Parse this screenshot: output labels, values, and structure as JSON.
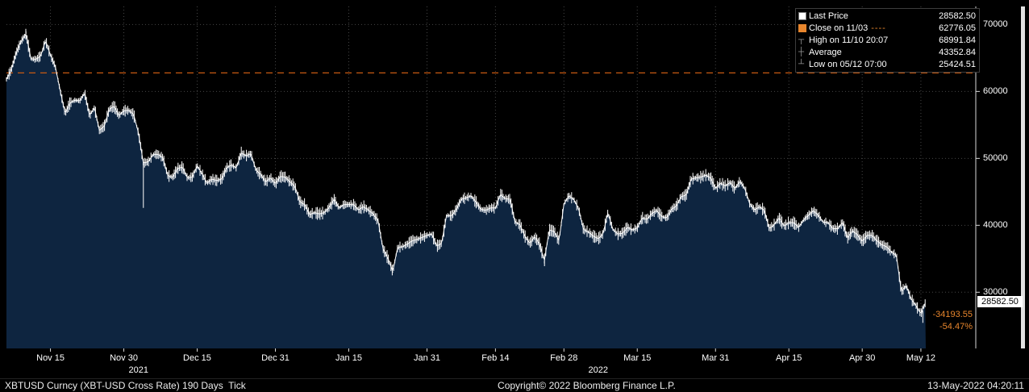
{
  "colors": {
    "background": "#000000",
    "area_fill": "#0e2540",
    "price_line": "#ffffff",
    "close_line": "#c85a12",
    "amber": "#e8862d",
    "grid": "#464646"
  },
  "legend": {
    "rows": [
      {
        "icon": "white-square",
        "label": "Last Price",
        "value": "28582.50"
      },
      {
        "icon": "orange-square",
        "label": "Close on 11/03",
        "dash": "----",
        "value": "62776.05"
      },
      {
        "icon": "high-marker",
        "label": "High on 11/10 20:07",
        "value": "68991.84"
      },
      {
        "icon": "average-marker",
        "label": "Average",
        "value": "43352.84"
      },
      {
        "icon": "low-marker",
        "label": "Low on 05/12 07:00",
        "value": "25424.51"
      }
    ]
  },
  "price_label": {
    "value": "28582.50"
  },
  "change_labels": {
    "net": "-34193.55",
    "pct": "-54.47%"
  },
  "footer": {
    "left": "XBTUSD Curncy (XBT-USD Cross Rate) 190 Days  Tick",
    "center": "Copyright© 2022 Bloomberg Finance L.P.",
    "right": "13-May-2022 04:20:11"
  },
  "chart_data": {
    "type": "line",
    "title": "XBTUSD Curncy (XBT-USD Cross Rate) 190 Days Tick",
    "legend_position": "top-right",
    "grid": "dotted",
    "xlim": [
      0,
      188
    ],
    "ylim": [
      21600,
      72700
    ],
    "y_ticks": [
      70000,
      60000,
      50000,
      40000,
      30000
    ],
    "x_ticks": [
      {
        "day": 9,
        "label": "Nov 15"
      },
      {
        "day": 24,
        "label": "Nov 30"
      },
      {
        "day": 39,
        "label": "Dec 15"
      },
      {
        "day": 55,
        "label": "Dec 31"
      },
      {
        "day": 70,
        "label": "Jan 15"
      },
      {
        "day": 86,
        "label": "Jan 31"
      },
      {
        "day": 100,
        "label": "Feb 14"
      },
      {
        "day": 114,
        "label": "Feb 28"
      },
      {
        "day": 129,
        "label": "Mar 15"
      },
      {
        "day": 145,
        "label": "Mar 31"
      },
      {
        "day": 160,
        "label": "Apr 15"
      },
      {
        "day": 175,
        "label": "Apr 30"
      },
      {
        "day": 187,
        "label": "May 12"
      }
    ],
    "year_labels": [
      {
        "day": 27,
        "label": "2021"
      },
      {
        "day": 121,
        "label": "2022"
      }
    ],
    "last_price": 28582.5,
    "close_line_value": 62776.05,
    "high": 68991.84,
    "average": 43352.84,
    "low": 25424.51,
    "y": [
      61800,
      63300,
      65800,
      67500,
      68600,
      64900,
      64800,
      65300,
      67600,
      65400,
      63700,
      60100,
      56700,
      58300,
      58700,
      58600,
      59800,
      56400,
      57600,
      54200,
      54800,
      57300,
      57800,
      56400,
      57100,
      57200,
      56600,
      53800,
      49300,
      49500,
      50600,
      50600,
      50100,
      47400,
      47200,
      48500,
      48700,
      47100,
      47200,
      48900,
      47700,
      46300,
      46900,
      46700,
      46900,
      48600,
      49000,
      48600,
      50800,
      50400,
      50700,
      48300,
      47600,
      46500,
      47100,
      46200,
      47300,
      47200,
      46500,
      45800,
      43500,
      43100,
      41600,
      41900,
      41700,
      41900,
      42700,
      43900,
      42600,
      43100,
      43100,
      43100,
      42300,
      42800,
      42300,
      41700,
      40700,
      36500,
      35100,
      33100,
      36700,
      36800,
      37200,
      37700,
      37900,
      38200,
      38500,
      38700,
      36900,
      37300,
      41500,
      41400,
      42400,
      43900,
      44100,
      44400,
      43500,
      42400,
      42250,
      42600,
      42600,
      44600,
      44000,
      43900,
      40500,
      40100,
      38400,
      37300,
      38300,
      37250,
      34700,
      39300,
      39100,
      37700,
      43200,
      44400,
      43900,
      42500,
      39400,
      39000,
      38400,
      38000,
      38700,
      41900,
      39400,
      38700,
      38800,
      39700,
      39300,
      39600,
      41100,
      40900,
      41800,
      42200,
      41300,
      41100,
      42400,
      42900,
      44300,
      44500,
      46900,
      47100,
      47200,
      47500,
      47100,
      45500,
      46300,
      45900,
      46400,
      45500,
      46600,
      45500,
      43200,
      42300,
      42800,
      42200,
      39500,
      40100,
      41100,
      39900,
      40400,
      40400,
      39700,
      40800,
      41500,
      42200,
      41500,
      40500,
      40400,
      39500,
      39500,
      40400,
      38100,
      39200,
      38600,
      37600,
      38500,
      38500,
      37700,
      37100,
      36800,
      36000,
      35500,
      30100,
      31000,
      29000,
      28000,
      26800,
      28582.5
    ],
    "wicks": [
      {
        "day": 4,
        "from": 68600,
        "to": 68991.84
      },
      {
        "day": 28,
        "from": 49300,
        "to": 42600
      },
      {
        "day": 79,
        "from": 33100,
        "to": 32950
      },
      {
        "day": 110,
        "from": 34700,
        "to": 34300
      },
      {
        "day": 187.4,
        "from": 27200,
        "to": 25424.51
      }
    ]
  }
}
